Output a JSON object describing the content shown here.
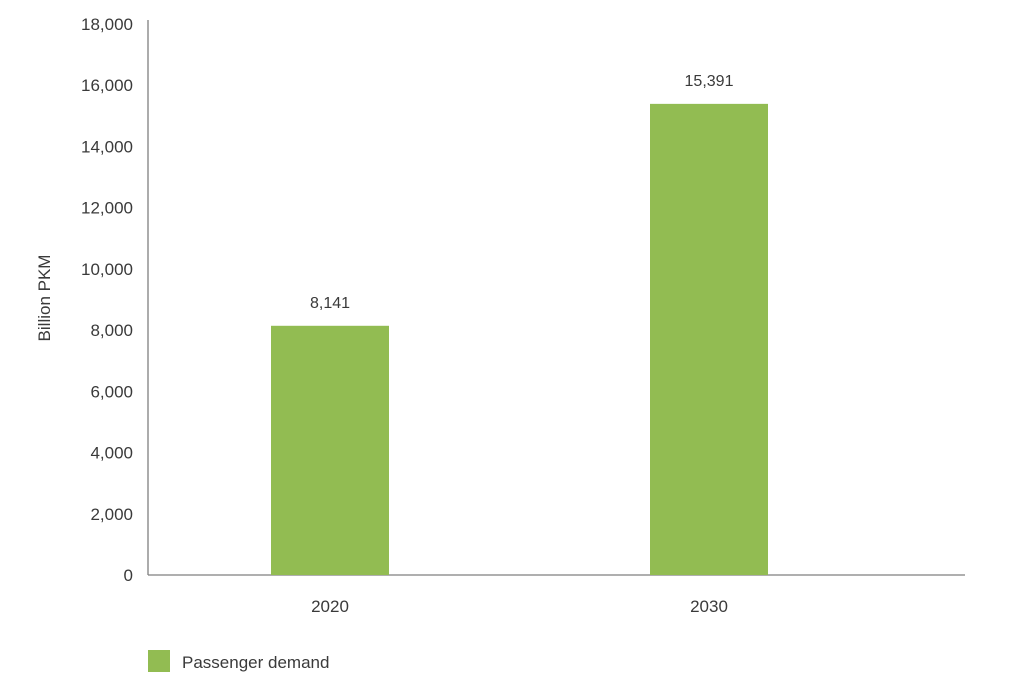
{
  "chart_data": {
    "type": "bar",
    "categories": [
      "2020",
      "2030"
    ],
    "series": [
      {
        "name": "Passenger demand",
        "values": [
          8141,
          15391
        ],
        "color": "#92bc52"
      }
    ],
    "data_labels": [
      "8,141",
      "15,391"
    ],
    "title": "",
    "xlabel": "",
    "ylabel": "Billion PKM",
    "ylim": [
      0,
      18000
    ],
    "yticks": [
      0,
      2000,
      4000,
      6000,
      8000,
      10000,
      12000,
      14000,
      16000,
      18000
    ],
    "ytick_labels": [
      "0",
      "2,000",
      "4,000",
      "6,000",
      "8,000",
      "10,000",
      "12,000",
      "14,000",
      "16,000",
      "18,000"
    ],
    "grid": false,
    "legend_position": "bottom-left",
    "axis_color": "#7f7f7f"
  }
}
